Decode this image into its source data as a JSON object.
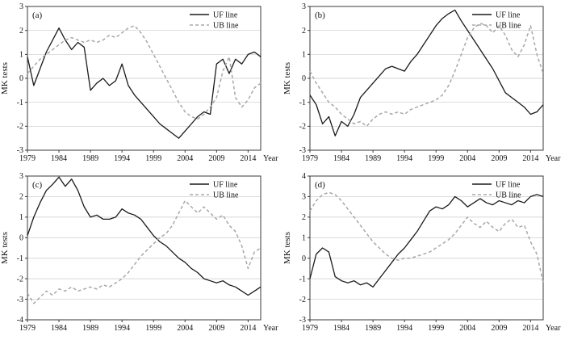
{
  "colors": {
    "uf": "#1a1a1a",
    "ub": "#a8a8a8",
    "grid": "#c9c9c9",
    "frame": "#3a3a3a",
    "text": "#111111"
  },
  "years": [
    1979,
    1980,
    1981,
    1982,
    1983,
    1984,
    1985,
    1986,
    1987,
    1988,
    1989,
    1990,
    1991,
    1992,
    1993,
    1994,
    1995,
    1996,
    1997,
    1998,
    1999,
    2000,
    2001,
    2002,
    2003,
    2004,
    2005,
    2006,
    2007,
    2008,
    2009,
    2010,
    2011,
    2012,
    2013,
    2014,
    2015,
    2016
  ],
  "chart_data": [
    {
      "type": "line",
      "panel_label": "(a)",
      "xlabel": "Year",
      "ylabel": "MK tests",
      "xlim": [
        1979,
        2016
      ],
      "ylim": [
        -3,
        3
      ],
      "xticks": [
        1979,
        1984,
        1989,
        1994,
        1999,
        2004,
        2009,
        2014
      ],
      "yticks": [
        -3,
        -2,
        -1,
        0,
        1,
        2,
        3
      ],
      "grid": true,
      "legend_position": "top-right",
      "legend": [
        "UF line",
        "UB line"
      ],
      "series": [
        {
          "name": "UF line",
          "style": "solid",
          "color_key": "uf",
          "values": [
            0.9,
            -0.3,
            0.4,
            1.1,
            1.6,
            2.1,
            1.6,
            1.2,
            1.5,
            1.3,
            -0.5,
            -0.2,
            0.0,
            -0.3,
            -0.1,
            0.6,
            -0.3,
            -0.7,
            -1.0,
            -1.3,
            -1.6,
            -1.9,
            -2.1,
            -2.3,
            -2.5,
            -2.2,
            -1.9,
            -1.6,
            -1.4,
            -1.5,
            0.6,
            0.8,
            0.2,
            0.8,
            0.6,
            1.0,
            1.1,
            0.9
          ]
        },
        {
          "name": "UB line",
          "style": "dashed",
          "color_key": "ub",
          "values": [
            0.2,
            0.5,
            0.8,
            1.0,
            1.2,
            1.4,
            1.6,
            1.7,
            1.6,
            1.5,
            1.6,
            1.5,
            1.6,
            1.8,
            1.7,
            1.9,
            2.1,
            2.2,
            1.9,
            1.5,
            1.0,
            0.5,
            0.0,
            -0.5,
            -1.0,
            -1.4,
            -1.6,
            -1.7,
            -1.5,
            -1.2,
            -0.8,
            0.3,
            0.9,
            -0.8,
            -1.2,
            -0.9,
            -0.4,
            -0.2
          ]
        }
      ]
    },
    {
      "type": "line",
      "panel_label": "(b)",
      "xlabel": "Year",
      "ylabel": "MK tests",
      "xlim": [
        1979,
        2016
      ],
      "ylim": [
        -3,
        3
      ],
      "xticks": [
        1979,
        1984,
        1989,
        1994,
        1999,
        2004,
        2009,
        2014
      ],
      "yticks": [
        -3,
        -2,
        -1,
        0,
        1,
        2,
        3
      ],
      "grid": true,
      "legend_position": "top-right",
      "legend": [
        "UF line",
        "UB line"
      ],
      "series": [
        {
          "name": "UF line",
          "style": "solid",
          "color_key": "uf",
          "values": [
            -0.7,
            -1.1,
            -1.9,
            -1.6,
            -2.4,
            -1.8,
            -2.0,
            -1.5,
            -0.8,
            -0.5,
            -0.2,
            0.1,
            0.4,
            0.5,
            0.4,
            0.3,
            0.7,
            1.0,
            1.4,
            1.8,
            2.2,
            2.5,
            2.7,
            2.85,
            2.4,
            2.0,
            1.6,
            1.2,
            0.8,
            0.4,
            -0.1,
            -0.6,
            -0.8,
            -1.0,
            -1.2,
            -1.5,
            -1.4,
            -1.1
          ]
        },
        {
          "name": "UB line",
          "style": "dashed",
          "color_key": "ub",
          "values": [
            0.3,
            -0.2,
            -0.6,
            -1.0,
            -1.2,
            -1.5,
            -1.7,
            -1.9,
            -1.8,
            -2.0,
            -1.7,
            -1.5,
            -1.4,
            -1.5,
            -1.4,
            -1.5,
            -1.3,
            -1.2,
            -1.1,
            -1.0,
            -0.9,
            -0.7,
            -0.3,
            0.3,
            1.0,
            1.7,
            2.1,
            2.3,
            2.2,
            1.9,
            2.2,
            1.8,
            1.2,
            0.9,
            1.4,
            2.2,
            1.0,
            0.2
          ]
        }
      ]
    },
    {
      "type": "line",
      "panel_label": "(c)",
      "xlabel": "Year",
      "ylabel": "MK tests",
      "xlim": [
        1979,
        2016
      ],
      "ylim": [
        -4,
        3
      ],
      "xticks": [
        1979,
        1984,
        1989,
        1994,
        1999,
        2004,
        2009,
        2014
      ],
      "yticks": [
        -4,
        -3,
        -2,
        -1,
        0,
        1,
        2,
        3
      ],
      "grid": true,
      "legend_position": "top-right",
      "legend": [
        "UF line",
        "UB line"
      ],
      "series": [
        {
          "name": "UF line",
          "style": "solid",
          "color_key": "uf",
          "values": [
            0.1,
            1.0,
            1.7,
            2.3,
            2.6,
            2.95,
            2.5,
            2.85,
            2.3,
            1.5,
            1.0,
            1.1,
            0.9,
            0.9,
            1.0,
            1.4,
            1.2,
            1.1,
            0.9,
            0.5,
            0.1,
            -0.2,
            -0.4,
            -0.7,
            -1.0,
            -1.2,
            -1.5,
            -1.7,
            -2.0,
            -2.1,
            -2.2,
            -2.1,
            -2.3,
            -2.4,
            -2.6,
            -2.8,
            -2.6,
            -2.4
          ]
        },
        {
          "name": "UB line",
          "style": "dashed",
          "color_key": "ub",
          "values": [
            -2.7,
            -3.2,
            -2.9,
            -2.6,
            -2.8,
            -2.5,
            -2.6,
            -2.4,
            -2.6,
            -2.5,
            -2.4,
            -2.5,
            -2.3,
            -2.4,
            -2.2,
            -2.0,
            -1.7,
            -1.3,
            -0.9,
            -0.6,
            -0.3,
            0.0,
            0.2,
            0.6,
            1.2,
            1.8,
            1.5,
            1.2,
            1.5,
            1.2,
            0.9,
            1.1,
            0.6,
            0.3,
            -0.4,
            -1.5,
            -0.7,
            -0.5
          ]
        }
      ]
    },
    {
      "type": "line",
      "panel_label": "(d)",
      "xlabel": "Year",
      "ylabel": "MK tests",
      "xlim": [
        1979,
        2016
      ],
      "ylim": [
        -3,
        4
      ],
      "xticks": [
        1979,
        1984,
        1989,
        1994,
        1999,
        2004,
        2009,
        2014
      ],
      "yticks": [
        -3,
        -2,
        -1,
        0,
        1,
        2,
        3,
        4
      ],
      "grid": true,
      "legend_position": "top-right",
      "legend": [
        "UF line",
        "UB line"
      ],
      "series": [
        {
          "name": "UF line",
          "style": "solid",
          "color_key": "uf",
          "values": [
            -1.0,
            0.2,
            0.5,
            0.3,
            -0.9,
            -1.1,
            -1.2,
            -1.1,
            -1.3,
            -1.2,
            -1.4,
            -1.0,
            -0.6,
            -0.2,
            0.2,
            0.5,
            0.9,
            1.3,
            1.8,
            2.3,
            2.5,
            2.4,
            2.6,
            3.0,
            2.8,
            2.5,
            2.7,
            2.9,
            2.7,
            2.6,
            2.8,
            2.7,
            2.6,
            2.8,
            2.7,
            3.0,
            3.1,
            3.0
          ]
        },
        {
          "name": "UB line",
          "style": "dashed",
          "color_key": "ub",
          "values": [
            2.3,
            2.8,
            3.1,
            3.2,
            3.1,
            2.8,
            2.4,
            2.0,
            1.6,
            1.2,
            0.8,
            0.5,
            0.2,
            0.0,
            -0.1,
            0.0,
            0.0,
            0.1,
            0.2,
            0.3,
            0.5,
            0.7,
            0.9,
            1.2,
            1.6,
            2.0,
            1.7,
            1.5,
            1.8,
            1.5,
            1.3,
            1.7,
            1.9,
            1.5,
            1.6,
            0.8,
            0.2,
            -1.2
          ]
        }
      ]
    }
  ]
}
